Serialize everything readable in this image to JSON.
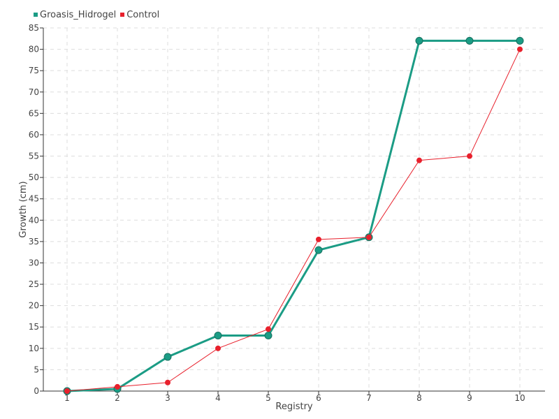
{
  "chart_data": {
    "type": "line",
    "title": "",
    "xlabel": "Registry",
    "ylabel": "Growth (cm)",
    "categories": [
      "1",
      "2",
      "3",
      "4",
      "5",
      "6",
      "7",
      "8",
      "9",
      "10"
    ],
    "ylim": [
      0,
      85
    ],
    "yticks": [
      0,
      5,
      10,
      15,
      20,
      25,
      30,
      35,
      40,
      45,
      50,
      55,
      60,
      65,
      70,
      75,
      80,
      85
    ],
    "grid": true,
    "legend_position": "top-left",
    "series": [
      {
        "name": "Groasis_Hidrogel",
        "color": "#1b9c85",
        "values": [
          0,
          0.5,
          8,
          13,
          13,
          33,
          36,
          82,
          82,
          82
        ]
      },
      {
        "name": "Control",
        "color": "#e8202c",
        "values": [
          0,
          1,
          2,
          10,
          14.5,
          35.5,
          36,
          54,
          55,
          80
        ]
      }
    ]
  }
}
